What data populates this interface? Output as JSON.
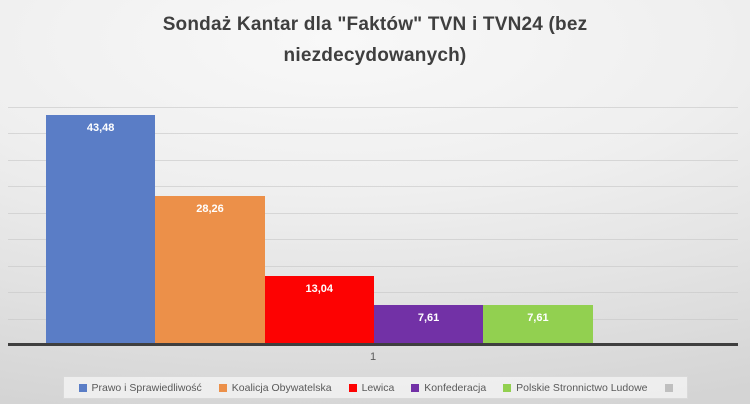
{
  "chart_data": {
    "type": "bar",
    "title": "Sondaż Kantar dla \"Faktów\" TVN i TVN24 (bez niezdecydowanych)",
    "categories": [
      "1"
    ],
    "series": [
      {
        "name": "Prawo i Sprawiedliwość",
        "values": [
          43.48
        ],
        "label": "43,48",
        "color": "#5a7dc6"
      },
      {
        "name": "Koalicja Obywatelska",
        "values": [
          28.26
        ],
        "label": "28,26",
        "color": "#ec9049"
      },
      {
        "name": "Lewica",
        "values": [
          13.04
        ],
        "label": "13,04",
        "color": "#fd0202"
      },
      {
        "name": "Konfederacja",
        "values": [
          7.61
        ],
        "label": "7,61",
        "color": "#7231a6"
      },
      {
        "name": "Polskie Stronnictwo Ludowe",
        "values": [
          7.61
        ],
        "label": "7,61",
        "color": "#92d050"
      },
      {
        "name": "",
        "values": [
          null
        ],
        "label": "",
        "color": "#bfbfbf"
      }
    ],
    "xlabel": "",
    "ylabel": "",
    "ylim": [
      0,
      45
    ],
    "gridline_step": 5,
    "grid": true,
    "legend_position": "bottom",
    "value_decimal_separator": ","
  },
  "colors": {
    "title_text": "#3f3f3f",
    "axis_line": "#3f3f3f",
    "gridline": "#c6c6c6",
    "axis_label_text": "#595959",
    "legend_text": "#595959",
    "legend_border": "#d9d9d9"
  }
}
